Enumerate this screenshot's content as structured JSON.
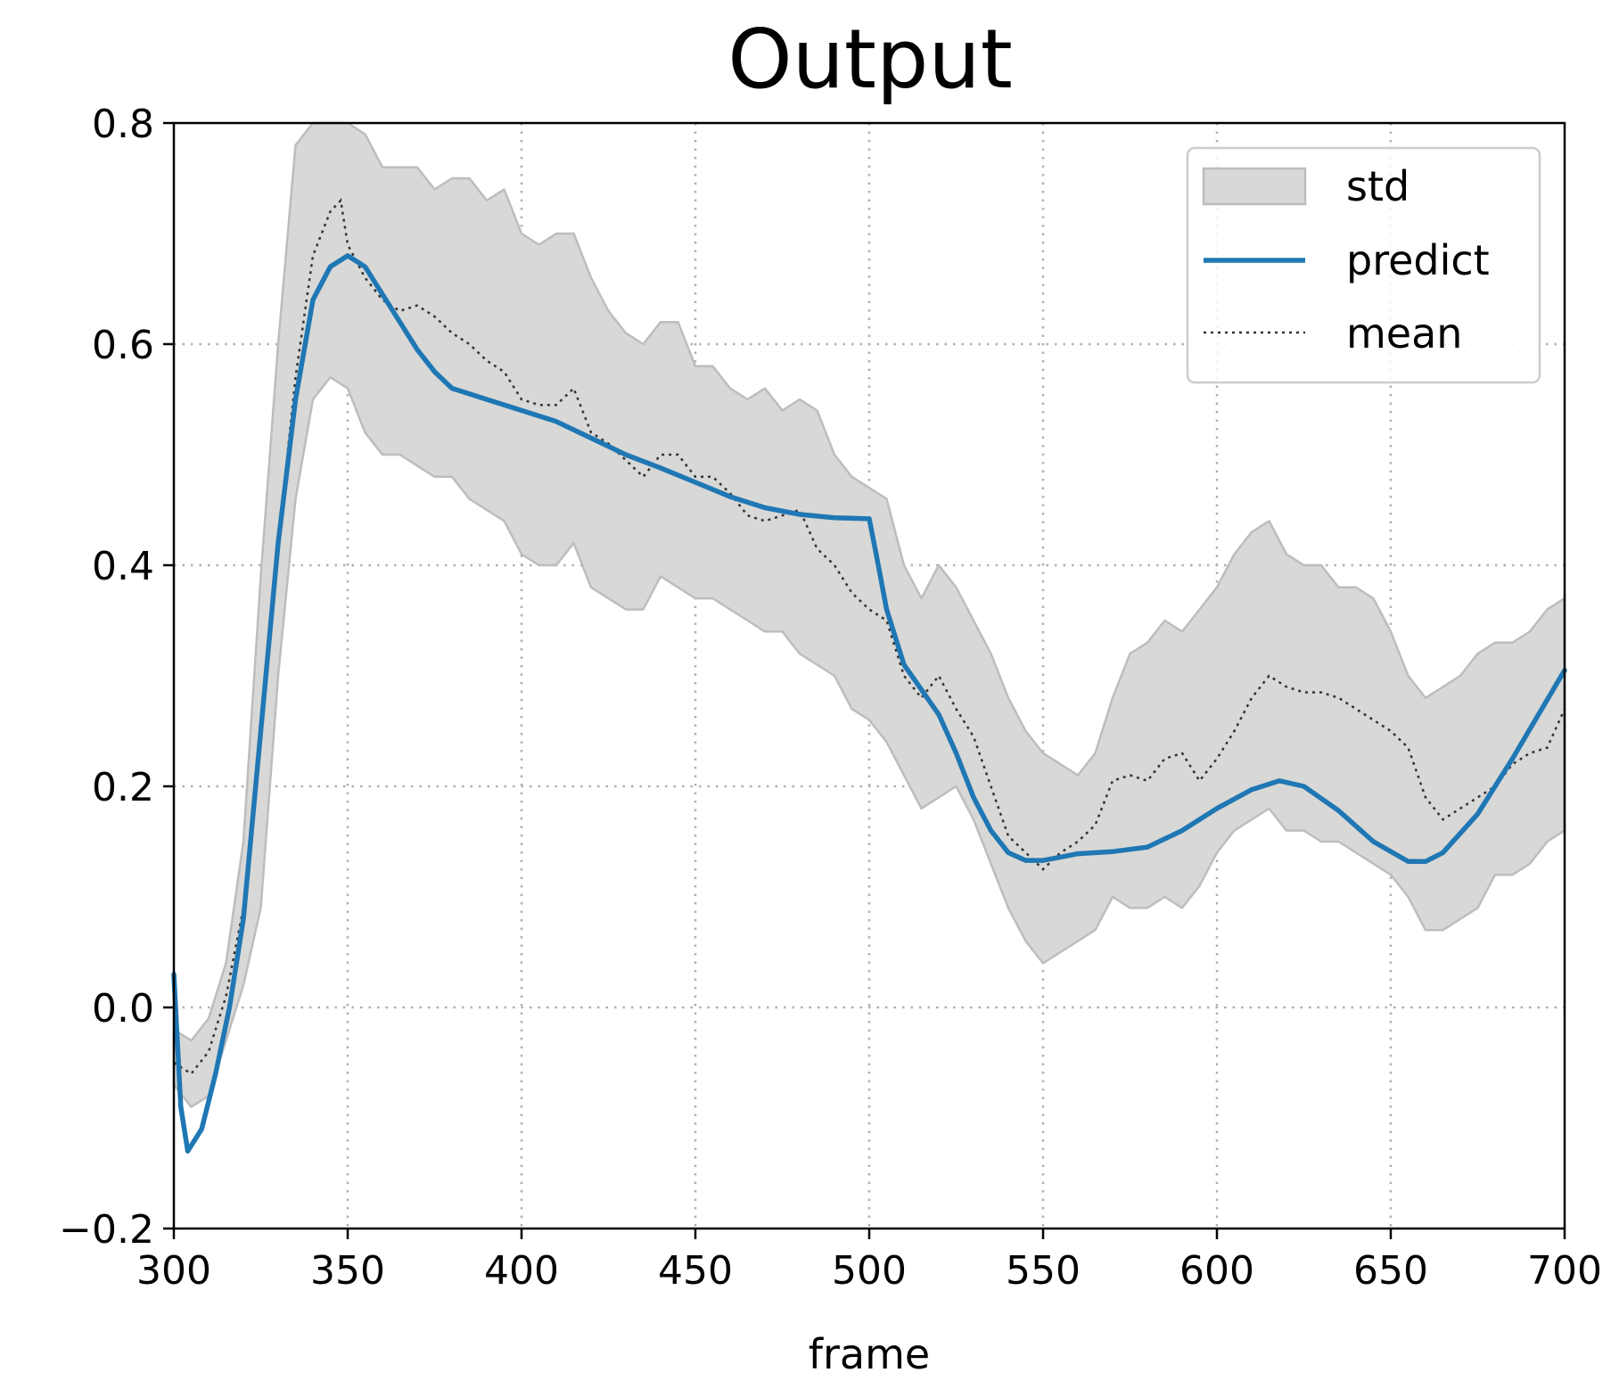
{
  "chart_data": {
    "type": "line",
    "title": "Output",
    "xlabel": "frame",
    "ylabel": "",
    "xlim": [
      300,
      700
    ],
    "ylim": [
      -0.2,
      0.8
    ],
    "xticks": [
      300,
      350,
      400,
      450,
      500,
      550,
      600,
      650,
      700
    ],
    "yticks": [
      -0.2,
      0.0,
      0.2,
      0.4,
      0.6,
      0.8
    ],
    "xtick_labels": [
      "300",
      "350",
      "400",
      "450",
      "500",
      "550",
      "600",
      "650",
      "700"
    ],
    "ytick_labels": [
      "−0.2",
      "0.0",
      "0.2",
      "0.4",
      "0.6",
      "0.8"
    ],
    "grid": true,
    "legend_position": "top-right",
    "legend": [
      "std",
      "predict",
      "mean"
    ],
    "colors": {
      "predict": "#1f77b4",
      "mean": "#333333",
      "std_fill": "#d8d8d7",
      "std_edge": "#bdbdbd"
    },
    "series": [
      {
        "name": "predict",
        "style": "solid",
        "x": [
          300,
          302,
          304,
          306,
          308,
          312,
          316,
          320,
          325,
          330,
          335,
          340,
          345,
          350,
          355,
          360,
          365,
          370,
          375,
          380,
          390,
          400,
          410,
          420,
          430,
          440,
          450,
          460,
          470,
          480,
          490,
          500,
          502,
          505,
          510,
          520,
          525,
          530,
          535,
          540,
          545,
          550,
          555,
          560,
          570,
          580,
          590,
          600,
          610,
          618,
          625,
          635,
          645,
          655,
          660,
          665,
          675,
          685,
          700
        ],
        "y": [
          0.03,
          -0.09,
          -0.13,
          -0.12,
          -0.11,
          -0.06,
          0.0,
          0.08,
          0.25,
          0.42,
          0.55,
          0.64,
          0.67,
          0.68,
          0.67,
          0.645,
          0.62,
          0.595,
          0.575,
          0.56,
          0.55,
          0.54,
          0.53,
          0.515,
          0.5,
          0.488,
          0.475,
          0.462,
          0.452,
          0.446,
          0.443,
          0.442,
          0.41,
          0.36,
          0.31,
          0.265,
          0.23,
          0.19,
          0.16,
          0.14,
          0.133,
          0.133,
          0.136,
          0.139,
          0.141,
          0.145,
          0.16,
          0.18,
          0.197,
          0.205,
          0.2,
          0.178,
          0.15,
          0.132,
          0.132,
          0.14,
          0.175,
          0.225,
          0.305
        ]
      },
      {
        "name": "mean",
        "style": "dotted",
        "x": [
          300,
          305,
          310,
          315,
          320,
          325,
          330,
          335,
          340,
          345,
          348,
          350,
          355,
          360,
          365,
          370,
          375,
          380,
          385,
          390,
          395,
          400,
          405,
          410,
          415,
          420,
          425,
          430,
          435,
          440,
          445,
          450,
          455,
          460,
          465,
          470,
          475,
          480,
          485,
          490,
          495,
          500,
          505,
          510,
          515,
          520,
          525,
          530,
          535,
          540,
          545,
          550,
          555,
          560,
          565,
          570,
          575,
          580,
          585,
          590,
          595,
          600,
          605,
          610,
          615,
          620,
          625,
          630,
          635,
          640,
          645,
          650,
          655,
          660,
          665,
          670,
          675,
          680,
          685,
          690,
          695,
          700
        ],
        "y": [
          -0.05,
          -0.06,
          -0.04,
          0.01,
          0.09,
          0.24,
          0.42,
          0.57,
          0.68,
          0.72,
          0.73,
          0.69,
          0.66,
          0.64,
          0.63,
          0.635,
          0.625,
          0.61,
          0.6,
          0.585,
          0.575,
          0.55,
          0.545,
          0.545,
          0.56,
          0.52,
          0.51,
          0.495,
          0.48,
          0.5,
          0.5,
          0.48,
          0.48,
          0.465,
          0.445,
          0.44,
          0.445,
          0.45,
          0.415,
          0.4,
          0.375,
          0.36,
          0.35,
          0.3,
          0.28,
          0.3,
          0.27,
          0.245,
          0.2,
          0.155,
          0.14,
          0.125,
          0.14,
          0.15,
          0.165,
          0.205,
          0.21,
          0.205,
          0.225,
          0.23,
          0.205,
          0.225,
          0.25,
          0.28,
          0.3,
          0.29,
          0.285,
          0.285,
          0.28,
          0.27,
          0.26,
          0.25,
          0.235,
          0.19,
          0.17,
          0.18,
          0.19,
          0.2,
          0.22,
          0.23,
          0.235,
          0.27
        ]
      },
      {
        "name": "std",
        "style": "band",
        "x": [
          300,
          305,
          310,
          315,
          320,
          325,
          330,
          335,
          340,
          345,
          350,
          355,
          360,
          365,
          370,
          375,
          380,
          385,
          390,
          395,
          400,
          405,
          410,
          415,
          420,
          425,
          430,
          435,
          440,
          445,
          450,
          455,
          460,
          465,
          470,
          475,
          480,
          485,
          490,
          495,
          500,
          505,
          510,
          515,
          520,
          525,
          530,
          535,
          540,
          545,
          550,
          555,
          560,
          565,
          570,
          575,
          580,
          585,
          590,
          595,
          600,
          605,
          610,
          615,
          620,
          625,
          630,
          635,
          640,
          645,
          650,
          655,
          660,
          665,
          670,
          675,
          680,
          685,
          690,
          695,
          700
        ],
        "lower": [
          -0.07,
          -0.09,
          -0.08,
          -0.03,
          0.02,
          0.09,
          0.3,
          0.46,
          0.55,
          0.57,
          0.56,
          0.52,
          0.5,
          0.5,
          0.49,
          0.48,
          0.48,
          0.46,
          0.45,
          0.44,
          0.41,
          0.4,
          0.4,
          0.42,
          0.38,
          0.37,
          0.36,
          0.36,
          0.39,
          0.38,
          0.37,
          0.37,
          0.36,
          0.35,
          0.34,
          0.34,
          0.32,
          0.31,
          0.3,
          0.27,
          0.26,
          0.24,
          0.21,
          0.18,
          0.19,
          0.2,
          0.17,
          0.13,
          0.09,
          0.06,
          0.04,
          0.05,
          0.06,
          0.07,
          0.1,
          0.09,
          0.09,
          0.1,
          0.09,
          0.11,
          0.14,
          0.16,
          0.17,
          0.18,
          0.16,
          0.16,
          0.15,
          0.15,
          0.14,
          0.13,
          0.12,
          0.1,
          0.07,
          0.07,
          0.08,
          0.09,
          0.12,
          0.12,
          0.13,
          0.15,
          0.16
        ],
        "upper": [
          -0.02,
          -0.03,
          -0.01,
          0.04,
          0.15,
          0.39,
          0.6,
          0.78,
          0.8,
          0.8,
          0.8,
          0.79,
          0.76,
          0.76,
          0.76,
          0.74,
          0.75,
          0.75,
          0.73,
          0.74,
          0.7,
          0.69,
          0.7,
          0.7,
          0.66,
          0.63,
          0.61,
          0.6,
          0.62,
          0.62,
          0.58,
          0.58,
          0.56,
          0.55,
          0.56,
          0.54,
          0.55,
          0.54,
          0.5,
          0.48,
          0.47,
          0.46,
          0.4,
          0.37,
          0.4,
          0.38,
          0.35,
          0.32,
          0.28,
          0.25,
          0.23,
          0.22,
          0.21,
          0.23,
          0.28,
          0.32,
          0.33,
          0.35,
          0.34,
          0.36,
          0.38,
          0.41,
          0.43,
          0.44,
          0.41,
          0.4,
          0.4,
          0.38,
          0.38,
          0.37,
          0.34,
          0.3,
          0.28,
          0.29,
          0.3,
          0.32,
          0.33,
          0.33,
          0.34,
          0.36,
          0.37
        ]
      }
    ]
  }
}
